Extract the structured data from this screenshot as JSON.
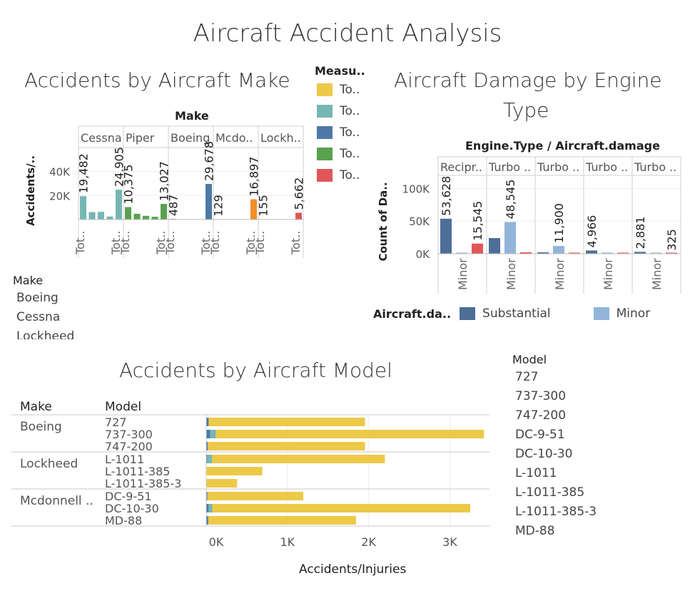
{
  "page": {
    "title": "Aircraft Accident Analysis"
  },
  "make_chart": {
    "title": "Accidents by Aircraft Make",
    "header": "Make",
    "ylabel": "Accidents/..",
    "yticks": [
      "40K",
      "20K"
    ],
    "measure_legend": {
      "title": "Measu..",
      "items": [
        {
          "label": "To..",
          "color": "#EDC948"
        },
        {
          "label": "To..",
          "color": "#76B7B2"
        },
        {
          "label": "To..",
          "color": "#4E79A7"
        },
        {
          "label": "To..",
          "color": "#59A14F"
        },
        {
          "label": "To..",
          "color": "#E15759"
        }
      ]
    }
  },
  "engine_chart": {
    "title_line1": "Aircraft Damage by Engine",
    "title_line2": "Type",
    "header": "Engine.Type / Aircraft.damage",
    "ylabel": "Count of Da..",
    "yticks": [
      "100K",
      "50K",
      "0K"
    ],
    "legend": {
      "title": "Aircraft.da..",
      "items": [
        {
          "label": "Substantial",
          "color": "#4E6E9A"
        },
        {
          "label": "Minor",
          "color": "#93B5D9"
        }
      ]
    }
  },
  "make_filter": {
    "title": "Make",
    "items": [
      "Boeing",
      "Cessna",
      "Lockheed"
    ]
  },
  "model_chart": {
    "title": "Accidents by Aircraft Model",
    "col_make": "Make",
    "col_model": "Model",
    "xlabel": "Accidents/Injuries",
    "xticks": [
      "0K",
      "1K",
      "2K",
      "3K"
    ]
  },
  "model_filter": {
    "title": "Model",
    "items": [
      "727",
      "737-300",
      "747-200",
      "DC-9-51",
      "DC-10-30",
      "L-1011",
      "L-1011-385",
      "L-1011-385-3",
      "MD-88"
    ]
  },
  "chart_data": [
    {
      "type": "bar",
      "title": "Accidents by Aircraft Make",
      "xlabel": "Make",
      "ylabel": "Accidents/..",
      "ylim": [
        0,
        60000
      ],
      "legend_title": "Measu..",
      "categories": [
        "Cessna",
        "Piper",
        "Boeing",
        "Mcdo..",
        "Lockh.."
      ],
      "tick_label": "Tot..",
      "bar_colors": [
        "#76B7B2",
        "#76B7B2",
        "#76B7B2",
        "#76B7B2",
        "#76B7B2"
      ],
      "groups": [
        {
          "make": "Cessna",
          "color": "#76B7B2",
          "values": [
            19482,
            6200,
            6400,
            2500,
            24905
          ],
          "labels": [
            "19,482",
            "",
            "",
            "",
            "24,905"
          ]
        },
        {
          "make": "Piper",
          "color": "#59A14F",
          "values": [
            10375,
            4800,
            3100,
            2300,
            13027
          ],
          "labels": [
            "10,375",
            "",
            "",
            "",
            "13,027"
          ]
        },
        {
          "make": "Boeing",
          "color": "#4E79A7",
          "values": [
            487,
            0,
            0,
            0,
            29678
          ],
          "labels": [
            "487",
            "",
            "",
            "",
            "29,678"
          ]
        },
        {
          "make": "Mcdo..",
          "color": "#F28E2B",
          "values": [
            129,
            0,
            0,
            0,
            16897
          ],
          "labels": [
            "129",
            "",
            "",
            "",
            "16,897"
          ]
        },
        {
          "make": "Lockh..",
          "color": "#E15759",
          "values": [
            155,
            0,
            0,
            0,
            5662
          ],
          "labels": [
            "155",
            "",
            "",
            "",
            "5,662"
          ]
        }
      ]
    },
    {
      "type": "bar",
      "title": "Aircraft Damage by Engine Type",
      "xlabel": "Engine.Type / Aircraft.damage",
      "ylabel": "Count of Da..",
      "ylim": [
        0,
        120000
      ],
      "categories": [
        "Recipr..",
        "Turbo ..",
        "Turbo ..",
        "Turbo ..",
        "Turbo .."
      ],
      "tick_label": "Minor",
      "groups": [
        {
          "engine": "Recipr..",
          "bars": [
            {
              "value": 53628,
              "color": "#4E6E9A",
              "label": "53,628"
            },
            {
              "value": 800,
              "color": "#93B5D9",
              "label": ""
            },
            {
              "value": 15545,
              "color": "#E15759",
              "label": "15,545"
            }
          ]
        },
        {
          "engine": "Turbo ..",
          "bars": [
            {
              "value": 24000,
              "color": "#4E6E9A",
              "label": ""
            },
            {
              "value": 48545,
              "color": "#93B5D9",
              "label": "48,545"
            },
            {
              "value": 2300,
              "color": "#E15759",
              "label": ""
            }
          ]
        },
        {
          "engine": "Turbo ..",
          "bars": [
            {
              "value": 2200,
              "color": "#4E6E9A",
              "label": ""
            },
            {
              "value": 11900,
              "color": "#93B5D9",
              "label": "11,900"
            },
            {
              "value": 600,
              "color": "#E15759",
              "label": ""
            }
          ]
        },
        {
          "engine": "Turbo ..",
          "bars": [
            {
              "value": 4966,
              "color": "#4E6E9A",
              "label": "4,966"
            },
            {
              "value": 1800,
              "color": "#93B5D9",
              "label": ""
            },
            {
              "value": 900,
              "color": "#E15759",
              "label": ""
            }
          ]
        },
        {
          "engine": "Turbo ..",
          "bars": [
            {
              "value": 2881,
              "color": "#4E6E9A",
              "label": "2,881"
            },
            {
              "value": 300,
              "color": "#93B5D9",
              "label": ""
            },
            {
              "value": 325,
              "color": "#E15759",
              "label": "325"
            }
          ]
        }
      ]
    },
    {
      "type": "bar",
      "orientation": "horizontal",
      "title": "Accidents by Aircraft Model",
      "xlabel": "Accidents/Injuries",
      "xlim": [
        0,
        3500
      ],
      "xticks": [
        0,
        1000,
        2000,
        3000
      ],
      "groups": [
        {
          "make": "Boeing",
          "rows": [
            {
              "model": "727",
              "segments": [
                {
                  "value": 30,
                  "color": "#4E79A7"
                },
                {
                  "value": 0,
                  "color": "#76B7B2"
                },
                {
                  "value": 1925,
                  "color": "#EDC948"
                }
              ]
            },
            {
              "model": "737-300",
              "segments": [
                {
                  "value": 50,
                  "color": "#4E79A7"
                },
                {
                  "value": 70,
                  "color": "#76B7B2"
                },
                {
                  "value": 3300,
                  "color": "#EDC948"
                }
              ]
            },
            {
              "model": "747-200",
              "segments": [
                {
                  "value": 20,
                  "color": "#4E79A7"
                },
                {
                  "value": 0,
                  "color": "#76B7B2"
                },
                {
                  "value": 1935,
                  "color": "#EDC948"
                }
              ]
            }
          ]
        },
        {
          "make": "Lockheed",
          "rows": [
            {
              "model": "L-1011",
              "segments": [
                {
                  "value": 10,
                  "color": "#4E79A7"
                },
                {
                  "value": 60,
                  "color": "#76B7B2"
                },
                {
                  "value": 2130,
                  "color": "#EDC948"
                }
              ]
            },
            {
              "model": "L-1011-385",
              "segments": [
                {
                  "value": 0,
                  "color": "#4E79A7"
                },
                {
                  "value": 0,
                  "color": "#76B7B2"
                },
                {
                  "value": 690,
                  "color": "#EDC948"
                }
              ]
            },
            {
              "model": "L-1011-385-3",
              "segments": [
                {
                  "value": 0,
                  "color": "#4E79A7"
                },
                {
                  "value": 0,
                  "color": "#76B7B2"
                },
                {
                  "value": 380,
                  "color": "#EDC948"
                }
              ]
            }
          ]
        },
        {
          "make": "Mcdonnell ..",
          "rows": [
            {
              "model": "DC-9-51",
              "segments": [
                {
                  "value": 15,
                  "color": "#4E79A7"
                },
                {
                  "value": 0,
                  "color": "#76B7B2"
                },
                {
                  "value": 1180,
                  "color": "#EDC948"
                }
              ]
            },
            {
              "model": "DC-10-30",
              "segments": [
                {
                  "value": 30,
                  "color": "#4E79A7"
                },
                {
                  "value": 45,
                  "color": "#76B7B2"
                },
                {
                  "value": 3175,
                  "color": "#EDC948"
                }
              ]
            },
            {
              "model": "MD-88",
              "segments": [
                {
                  "value": 25,
                  "color": "#4E79A7"
                },
                {
                  "value": 0,
                  "color": "#76B7B2"
                },
                {
                  "value": 1820,
                  "color": "#EDC948"
                }
              ]
            }
          ]
        }
      ]
    }
  ]
}
